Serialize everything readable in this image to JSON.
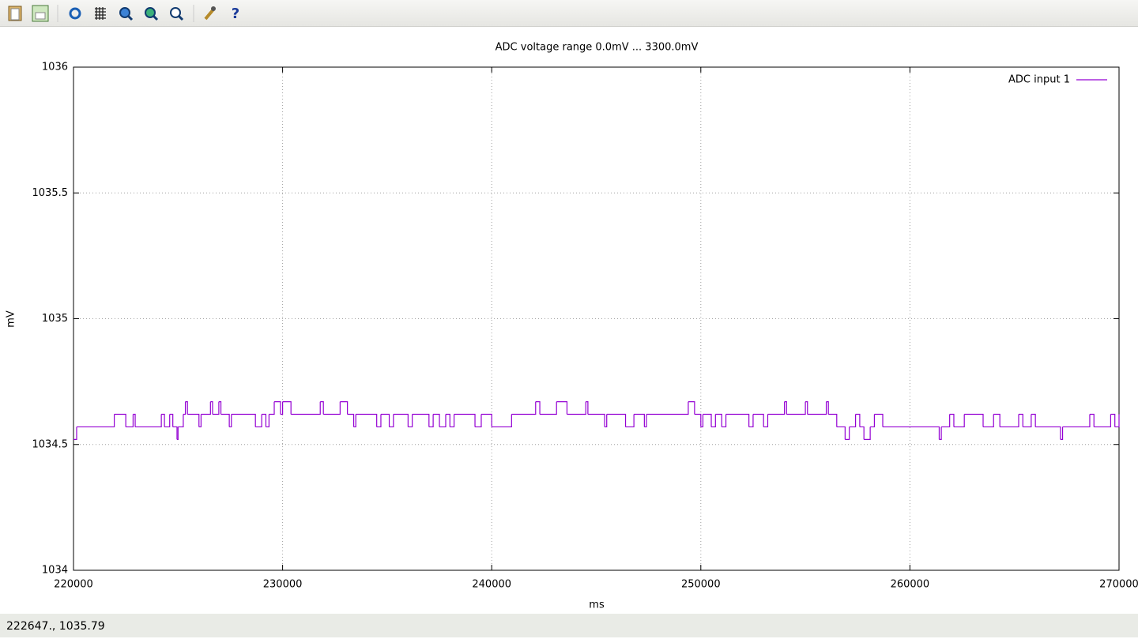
{
  "chart_data": {
    "type": "line",
    "style": "steps",
    "title": "ADC voltage range 0.0mV ... 3300.0mV",
    "x_label": "ms",
    "y_label": "mV",
    "xlim": [
      220000,
      270000
    ],
    "xticks": [
      220000,
      230000,
      240000,
      250000,
      260000,
      270000
    ],
    "ylim": [
      1034,
      1036
    ],
    "yticks": [
      1034,
      1034.5,
      1035,
      1035.5,
      1036
    ],
    "grid": true,
    "legend": "top-right",
    "series": [
      {
        "name": "ADC input 1",
        "color": "#9400d3",
        "x": [
          220000,
          220150,
          221950,
          222500,
          222850,
          222950,
          224200,
          224350,
          224600,
          224750,
          224950,
          225000,
          225250,
          225350,
          225450,
          226000,
          226100,
          226550,
          226650,
          226950,
          227050,
          227450,
          227550,
          228700,
          229000,
          229200,
          229350,
          229600,
          229900,
          230000,
          230400,
          231800,
          231950,
          232750,
          233100,
          233400,
          233500,
          234500,
          234700,
          235100,
          235300,
          236000,
          236200,
          237000,
          237200,
          237500,
          237800,
          238000,
          238200,
          239200,
          239500,
          240000,
          240950,
          242100,
          242300,
          243100,
          243600,
          244500,
          244600,
          245400,
          245500,
          246400,
          246800,
          247300,
          247400,
          249400,
          249700,
          250000,
          250100,
          250500,
          250700,
          251000,
          251200,
          252300,
          252500,
          253000,
          253200,
          254000,
          254100,
          255000,
          255100,
          256000,
          256100,
          256500,
          256900,
          257100,
          257400,
          257600,
          257800,
          258100,
          258300,
          258700,
          261400,
          261500,
          261900,
          262100,
          262600,
          263500,
          264000,
          264300,
          265200,
          265400,
          265800,
          266000,
          267200,
          267300,
          268600,
          268800,
          269600,
          269800,
          270000
        ],
        "values": [
          1034.52,
          1034.57,
          1034.62,
          1034.57,
          1034.62,
          1034.57,
          1034.62,
          1034.57,
          1034.62,
          1034.57,
          1034.52,
          1034.57,
          1034.62,
          1034.67,
          1034.62,
          1034.57,
          1034.62,
          1034.67,
          1034.62,
          1034.67,
          1034.62,
          1034.57,
          1034.62,
          1034.57,
          1034.62,
          1034.57,
          1034.62,
          1034.67,
          1034.62,
          1034.67,
          1034.62,
          1034.67,
          1034.62,
          1034.67,
          1034.62,
          1034.57,
          1034.62,
          1034.57,
          1034.62,
          1034.57,
          1034.62,
          1034.57,
          1034.62,
          1034.57,
          1034.62,
          1034.57,
          1034.62,
          1034.57,
          1034.62,
          1034.57,
          1034.62,
          1034.57,
          1034.62,
          1034.67,
          1034.62,
          1034.67,
          1034.62,
          1034.67,
          1034.62,
          1034.57,
          1034.62,
          1034.57,
          1034.62,
          1034.57,
          1034.62,
          1034.67,
          1034.62,
          1034.57,
          1034.62,
          1034.57,
          1034.62,
          1034.57,
          1034.62,
          1034.57,
          1034.62,
          1034.57,
          1034.62,
          1034.67,
          1034.62,
          1034.67,
          1034.62,
          1034.67,
          1034.62,
          1034.57,
          1034.52,
          1034.57,
          1034.62,
          1034.57,
          1034.52,
          1034.57,
          1034.62,
          1034.57,
          1034.52,
          1034.57,
          1034.62,
          1034.57,
          1034.62,
          1034.57,
          1034.62,
          1034.57,
          1034.62,
          1034.57,
          1034.62,
          1034.57,
          1034.52,
          1034.57,
          1034.62,
          1034.57,
          1034.62,
          1034.57,
          1034.62
        ]
      }
    ]
  },
  "status": {
    "text": "222647.,  1035.79"
  }
}
